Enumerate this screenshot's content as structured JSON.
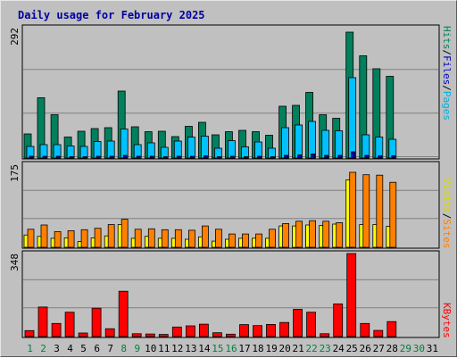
{
  "title": "Daily usage for February 2025",
  "colors": {
    "background": "#c0c0c0",
    "plot_bg": "#c0c0c0",
    "grid": "#808080",
    "title": "#0000a0",
    "hits": "#00805c",
    "files": "#00c0ff",
    "pages": "#00c0ff",
    "visits": "#ffff00",
    "sites": "#ff8000",
    "kbytes": "#ff0000",
    "weekday_label": "#000000",
    "weekend_label": "#008040"
  },
  "legend": {
    "panel1": {
      "hits": "Hits",
      "files": "Files",
      "pages": "Pages",
      "sep": "/"
    },
    "panel2": {
      "visits": "Visits",
      "sites": "Sites",
      "sep": "/"
    },
    "panel3": {
      "kbytes": "KBytes"
    }
  },
  "chart_data": [
    {
      "type": "bar",
      "panel": "hits-files-pages",
      "categories": [
        "1",
        "2",
        "3",
        "4",
        "5",
        "6",
        "7",
        "8",
        "9",
        "10",
        "11",
        "12",
        "13",
        "14",
        "15",
        "16",
        "17",
        "18",
        "19",
        "20",
        "21",
        "22",
        "23",
        "24",
        "25",
        "26",
        "27",
        "28",
        "29",
        "30",
        "31"
      ],
      "weekend_days": [
        "1",
        "2",
        "8",
        "9",
        "15",
        "16",
        "22",
        "23",
        "29",
        "30"
      ],
      "ymax_label": "292",
      "ylim": [
        0,
        292
      ],
      "series": [
        {
          "name": "Hits",
          "values": [
            54,
            135,
            97,
            47,
            60,
            66,
            68,
            150,
            70,
            59,
            60,
            48,
            71,
            80,
            52,
            59,
            62,
            59,
            51,
            116,
            118,
            147,
            97,
            89,
            282,
            229,
            200,
            183,
            0,
            0,
            0
          ]
        },
        {
          "name": "Files",
          "values": [
            26,
            30,
            30,
            27,
            26,
            37,
            38,
            65,
            30,
            34,
            24,
            38,
            47,
            49,
            22,
            39,
            25,
            36,
            22,
            68,
            74,
            82,
            62,
            61,
            180,
            52,
            47,
            42,
            0,
            0,
            0
          ]
        },
        {
          "name": "Pages",
          "values": [
            4,
            4,
            4,
            3,
            3,
            4,
            4,
            6,
            4,
            4,
            3,
            4,
            4,
            5,
            3,
            4,
            3,
            4,
            3,
            6,
            7,
            9,
            6,
            6,
            14,
            6,
            5,
            5,
            0,
            0,
            0
          ]
        }
      ]
    },
    {
      "type": "bar",
      "panel": "visits-sites",
      "categories": [
        "1",
        "2",
        "3",
        "4",
        "5",
        "6",
        "7",
        "8",
        "9",
        "10",
        "11",
        "12",
        "13",
        "14",
        "15",
        "16",
        "17",
        "18",
        "19",
        "20",
        "21",
        "22",
        "23",
        "24",
        "25",
        "26",
        "27",
        "28",
        "29",
        "30",
        "31"
      ],
      "ymax_label": "175",
      "ylim": [
        0,
        175
      ],
      "series": [
        {
          "name": "Visits",
          "values": [
            26,
            23,
            19,
            20,
            12,
            20,
            24,
            48,
            19,
            23,
            19,
            19,
            17,
            22,
            13,
            17,
            19,
            19,
            19,
            45,
            45,
            47,
            46,
            49,
            142,
            48,
            48,
            44,
            0,
            0,
            0
          ]
        },
        {
          "name": "Sites",
          "values": [
            38,
            47,
            33,
            35,
            37,
            40,
            48,
            59,
            38,
            39,
            37,
            37,
            36,
            45,
            38,
            28,
            28,
            28,
            38,
            50,
            55,
            56,
            55,
            52,
            158,
            153,
            152,
            137,
            0,
            0,
            0
          ]
        }
      ]
    },
    {
      "type": "bar",
      "panel": "kbytes",
      "categories": [
        "1",
        "2",
        "3",
        "4",
        "5",
        "6",
        "7",
        "8",
        "9",
        "10",
        "11",
        "12",
        "13",
        "14",
        "15",
        "16",
        "17",
        "18",
        "19",
        "20",
        "21",
        "22",
        "23",
        "24",
        "25",
        "26",
        "27",
        "28",
        "29",
        "30",
        "31"
      ],
      "ymax_label": "348",
      "ylim": [
        0,
        348
      ],
      "series": [
        {
          "name": "KBytes",
          "values": [
            25,
            124,
            55,
            102,
            15,
            119,
            33,
            190,
            12,
            11,
            9,
            40,
            45,
            52,
            16,
            10,
            50,
            46,
            51,
            59,
            114,
            102,
            12,
            137,
            348,
            55,
            26,
            63,
            0,
            0,
            0
          ]
        }
      ]
    }
  ]
}
